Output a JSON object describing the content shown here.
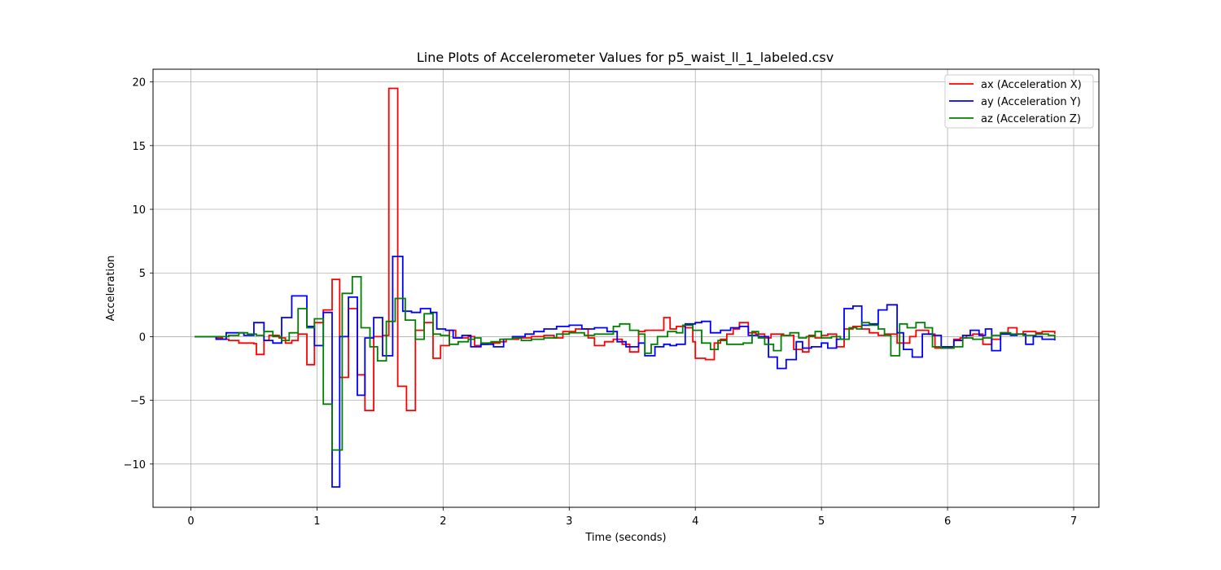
{
  "chart_data": {
    "type": "line",
    "title": "Line Plots of Accelerometer Values for p5_waist_ll_1_labeled.csv",
    "xlabel": "Time (seconds)",
    "ylabel": "Acceleration",
    "xlim": [
      -0.3,
      7.2
    ],
    "ylim": [
      -13.4,
      21.0
    ],
    "xticks": [
      0,
      1,
      2,
      3,
      4,
      5,
      6,
      7
    ],
    "yticks": [
      -10,
      -5,
      0,
      5,
      10,
      15,
      20
    ],
    "xtick_labels": [
      "0",
      "1",
      "2",
      "3",
      "4",
      "5",
      "6",
      "7"
    ],
    "ytick_labels": [
      "−10",
      "−5",
      "0",
      "5",
      "10",
      "15",
      "20"
    ],
    "grid": true,
    "legend": "top-right",
    "drawstyle": "steps",
    "series": [
      {
        "name": "ax (Acceleration X)",
        "color": "#ff0000",
        "points": [
          [
            0.03,
            0
          ],
          [
            0.2,
            -0.1
          ],
          [
            0.25,
            -0.2
          ],
          [
            0.3,
            -0.3
          ],
          [
            0.38,
            -0.5
          ],
          [
            0.5,
            -0.55
          ],
          [
            0.52,
            -1.4
          ],
          [
            0.58,
            -0.3
          ],
          [
            0.62,
            0.1
          ],
          [
            0.7,
            -0.1
          ],
          [
            0.75,
            -0.5
          ],
          [
            0.8,
            -0.3
          ],
          [
            0.85,
            0.2
          ],
          [
            0.92,
            -2.2
          ],
          [
            0.98,
            1.1
          ],
          [
            1.05,
            2.1
          ],
          [
            1.12,
            4.5
          ],
          [
            1.18,
            -3.2
          ],
          [
            1.25,
            2.2
          ],
          [
            1.32,
            -3
          ],
          [
            1.38,
            -5.8
          ],
          [
            1.45,
            0
          ],
          [
            1.52,
            0.1
          ],
          [
            1.57,
            19.5
          ],
          [
            1.64,
            -3.9
          ],
          [
            1.71,
            -5.8
          ],
          [
            1.78,
            0.5
          ],
          [
            1.85,
            1.1
          ],
          [
            1.92,
            -1.7
          ],
          [
            1.98,
            -0.7
          ],
          [
            2.05,
            0.5
          ],
          [
            2.1,
            -0.1
          ],
          [
            2.2,
            0
          ],
          [
            2.25,
            -0.7
          ],
          [
            2.3,
            -0.6
          ],
          [
            2.35,
            -0.5
          ],
          [
            2.45,
            -0.4
          ],
          [
            2.5,
            -0.2
          ],
          [
            2.6,
            -0.1
          ],
          [
            2.7,
            0
          ],
          [
            2.8,
            0.1
          ],
          [
            2.88,
            -0.1
          ],
          [
            2.95,
            0.4
          ],
          [
            3.05,
            0.6
          ],
          [
            3.15,
            -0.1
          ],
          [
            3.2,
            -0.7
          ],
          [
            3.28,
            -0.4
          ],
          [
            3.35,
            -0.2
          ],
          [
            3.42,
            -0.6
          ],
          [
            3.48,
            -1.2
          ],
          [
            3.55,
            0.4
          ],
          [
            3.6,
            0.5
          ],
          [
            3.7,
            0.5
          ],
          [
            3.75,
            1.5
          ],
          [
            3.8,
            0.6
          ],
          [
            3.85,
            0.8
          ],
          [
            3.92,
            0.7
          ],
          [
            3.98,
            -0.4
          ],
          [
            4.0,
            -1.7
          ],
          [
            4.08,
            -1.8
          ],
          [
            4.15,
            -0.5
          ],
          [
            4.2,
            -0.2
          ],
          [
            4.25,
            0.2
          ],
          [
            4.3,
            0.6
          ],
          [
            4.35,
            1.1
          ],
          [
            4.42,
            0.3
          ],
          [
            4.48,
            0.2
          ],
          [
            4.55,
            -0.1
          ],
          [
            4.6,
            0.2
          ],
          [
            4.65,
            0.2
          ],
          [
            4.7,
            0.1
          ],
          [
            4.78,
            -1.0
          ],
          [
            4.85,
            -1.2
          ],
          [
            4.9,
            0.1
          ],
          [
            4.95,
            -0.1
          ],
          [
            5.0,
            0.1
          ],
          [
            5.05,
            0.2
          ],
          [
            5.12,
            -0.8
          ],
          [
            5.18,
            0.6
          ],
          [
            5.25,
            0.8
          ],
          [
            5.32,
            0.6
          ],
          [
            5.38,
            0.3
          ],
          [
            5.45,
            0.1
          ],
          [
            5.5,
            0.2
          ],
          [
            5.6,
            -0.5
          ],
          [
            5.7,
            0
          ],
          [
            5.75,
            0.5
          ],
          [
            5.85,
            0.2
          ],
          [
            5.9,
            -0.9
          ],
          [
            6.0,
            -0.9
          ],
          [
            6.05,
            -0.2
          ],
          [
            6.1,
            -0.1
          ],
          [
            6.15,
            0.1
          ],
          [
            6.2,
            0.2
          ],
          [
            6.28,
            -0.6
          ],
          [
            6.35,
            -0.2
          ],
          [
            6.42,
            0.3
          ],
          [
            6.48,
            0.7
          ],
          [
            6.55,
            0.2
          ],
          [
            6.6,
            0.4
          ],
          [
            6.7,
            0.3
          ],
          [
            6.75,
            0.4
          ],
          [
            6.85,
            0.2
          ]
        ]
      },
      {
        "name": "ay (Acceleration Y)",
        "color": "#0000ff",
        "points": [
          [
            0.03,
            0
          ],
          [
            0.15,
            0
          ],
          [
            0.2,
            -0.2
          ],
          [
            0.28,
            0.3
          ],
          [
            0.35,
            0.3
          ],
          [
            0.42,
            0.1
          ],
          [
            0.5,
            1.1
          ],
          [
            0.58,
            -0.3
          ],
          [
            0.65,
            -0.5
          ],
          [
            0.72,
            1.5
          ],
          [
            0.8,
            3.2
          ],
          [
            0.92,
            0.8
          ],
          [
            0.98,
            -0.7
          ],
          [
            1.05,
            1.9
          ],
          [
            1.12,
            -11.8
          ],
          [
            1.18,
            0
          ],
          [
            1.25,
            3.1
          ],
          [
            1.32,
            -4.6
          ],
          [
            1.38,
            -0.1
          ],
          [
            1.45,
            1.5
          ],
          [
            1.52,
            -1.5
          ],
          [
            1.6,
            6.3
          ],
          [
            1.68,
            2
          ],
          [
            1.75,
            1.9
          ],
          [
            1.82,
            2.2
          ],
          [
            1.9,
            1.9
          ],
          [
            1.95,
            0.6
          ],
          [
            2.02,
            0.5
          ],
          [
            2.08,
            -0.1
          ],
          [
            2.15,
            0.1
          ],
          [
            2.22,
            -0.8
          ],
          [
            2.3,
            -0.6
          ],
          [
            2.4,
            -0.8
          ],
          [
            2.48,
            -0.2
          ],
          [
            2.55,
            0
          ],
          [
            2.65,
            0.2
          ],
          [
            2.72,
            0.4
          ],
          [
            2.8,
            0.6
          ],
          [
            2.9,
            0.8
          ],
          [
            3.0,
            0.9
          ],
          [
            3.1,
            0.6
          ],
          [
            3.2,
            0.7
          ],
          [
            3.3,
            0.4
          ],
          [
            3.38,
            -0.4
          ],
          [
            3.45,
            -0.8
          ],
          [
            3.55,
            -0.5
          ],
          [
            3.6,
            -1.5
          ],
          [
            3.68,
            -0.8
          ],
          [
            3.75,
            -0.6
          ],
          [
            3.8,
            -0.7
          ],
          [
            3.85,
            -0.6
          ],
          [
            3.92,
            1.0
          ],
          [
            4.0,
            1.1
          ],
          [
            4.05,
            1.2
          ],
          [
            4.12,
            0.3
          ],
          [
            4.2,
            0.5
          ],
          [
            4.28,
            0.7
          ],
          [
            4.35,
            0.8
          ],
          [
            4.42,
            0.1
          ],
          [
            4.5,
            0
          ],
          [
            4.58,
            -1.6
          ],
          [
            4.65,
            -2.5
          ],
          [
            4.72,
            -1.8
          ],
          [
            4.8,
            -0.4
          ],
          [
            4.85,
            -0.9
          ],
          [
            4.92,
            -0.8
          ],
          [
            5.0,
            -0.5
          ],
          [
            5.05,
            -0.9
          ],
          [
            5.12,
            -0.2
          ],
          [
            5.18,
            2.2
          ],
          [
            5.25,
            2.4
          ],
          [
            5.32,
            0.9
          ],
          [
            5.38,
            1.0
          ],
          [
            5.45,
            2.1
          ],
          [
            5.52,
            2.5
          ],
          [
            5.6,
            0.3
          ],
          [
            5.65,
            -1.0
          ],
          [
            5.72,
            -1.6
          ],
          [
            5.8,
            0.2
          ],
          [
            5.88,
            0.1
          ],
          [
            5.95,
            -0.8
          ],
          [
            6.05,
            -0.3
          ],
          [
            6.12,
            0.1
          ],
          [
            6.18,
            0.5
          ],
          [
            6.25,
            0.1
          ],
          [
            6.3,
            0.6
          ],
          [
            6.35,
            -1.1
          ],
          [
            6.42,
            0.2
          ],
          [
            6.5,
            0.1
          ],
          [
            6.55,
            0.2
          ],
          [
            6.62,
            -0.6
          ],
          [
            6.68,
            0
          ],
          [
            6.75,
            -0.2
          ],
          [
            6.85,
            -0.3
          ]
        ]
      },
      {
        "name": "az (Acceleration Z)",
        "color": "#008000",
        "points": [
          [
            0.03,
            0
          ],
          [
            0.2,
            0
          ],
          [
            0.3,
            0.1
          ],
          [
            0.38,
            0.3
          ],
          [
            0.45,
            0.2
          ],
          [
            0.52,
            0.1
          ],
          [
            0.58,
            0.4
          ],
          [
            0.65,
            0
          ],
          [
            0.72,
            -0.3
          ],
          [
            0.78,
            0.3
          ],
          [
            0.85,
            2.2
          ],
          [
            0.92,
            0.7
          ],
          [
            0.98,
            1.4
          ],
          [
            1.05,
            -5.3
          ],
          [
            1.12,
            -8.9
          ],
          [
            1.2,
            3.4
          ],
          [
            1.28,
            4.7
          ],
          [
            1.35,
            0.7
          ],
          [
            1.42,
            -0.8
          ],
          [
            1.48,
            -1.9
          ],
          [
            1.55,
            1.2
          ],
          [
            1.62,
            3.0
          ],
          [
            1.7,
            1.3
          ],
          [
            1.78,
            -0.2
          ],
          [
            1.85,
            1.8
          ],
          [
            1.92,
            0.2
          ],
          [
            1.98,
            0.1
          ],
          [
            2.05,
            -0.6
          ],
          [
            2.12,
            -0.4
          ],
          [
            2.2,
            -0.2
          ],
          [
            2.25,
            -0.1
          ],
          [
            2.3,
            -0.5
          ],
          [
            2.38,
            -0.4
          ],
          [
            2.45,
            -0.2
          ],
          [
            2.55,
            -0.1
          ],
          [
            2.62,
            -0.3
          ],
          [
            2.7,
            -0.2
          ],
          [
            2.8,
            -0.1
          ],
          [
            2.9,
            0.2
          ],
          [
            3.0,
            0.3
          ],
          [
            3.05,
            0.3
          ],
          [
            3.12,
            0.1
          ],
          [
            3.2,
            0.2
          ],
          [
            3.28,
            0.2
          ],
          [
            3.35,
            0.8
          ],
          [
            3.4,
            1.0
          ],
          [
            3.48,
            0.5
          ],
          [
            3.55,
            0.2
          ],
          [
            3.6,
            -1.3
          ],
          [
            3.65,
            -0.6
          ],
          [
            3.7,
            0
          ],
          [
            3.78,
            0.4
          ],
          [
            3.85,
            0.3
          ],
          [
            3.9,
            0.9
          ],
          [
            3.98,
            0.5
          ],
          [
            4.05,
            -0.5
          ],
          [
            4.12,
            -1.0
          ],
          [
            4.18,
            -0.3
          ],
          [
            4.25,
            -0.6
          ],
          [
            4.38,
            -0.5
          ],
          [
            4.45,
            0.4
          ],
          [
            4.5,
            -0.1
          ],
          [
            4.55,
            -0.6
          ],
          [
            4.62,
            -1.1
          ],
          [
            4.68,
            0.1
          ],
          [
            4.75,
            0.3
          ],
          [
            4.82,
            -0.1
          ],
          [
            4.88,
            0
          ],
          [
            4.95,
            0.4
          ],
          [
            5.0,
            -0.1
          ],
          [
            5.08,
            0
          ],
          [
            5.15,
            -0.2
          ],
          [
            5.22,
            0.7
          ],
          [
            5.28,
            0.6
          ],
          [
            5.32,
            1.1
          ],
          [
            5.38,
            0.9
          ],
          [
            5.45,
            0.6
          ],
          [
            5.5,
            0.1
          ],
          [
            5.55,
            -1.5
          ],
          [
            5.62,
            1.0
          ],
          [
            5.68,
            0.7
          ],
          [
            5.75,
            1.1
          ],
          [
            5.82,
            0.7
          ],
          [
            5.88,
            -0.8
          ],
          [
            5.95,
            -0.9
          ],
          [
            6.05,
            -0.8
          ],
          [
            6.12,
            -0.1
          ],
          [
            6.2,
            -0.2
          ],
          [
            6.28,
            -0.1
          ],
          [
            6.35,
            0.1
          ],
          [
            6.42,
            0.3
          ],
          [
            6.5,
            0.2
          ],
          [
            6.6,
            0.1
          ],
          [
            6.7,
            0.2
          ],
          [
            6.8,
            0.1
          ],
          [
            6.85,
            -0.2
          ]
        ]
      }
    ]
  }
}
